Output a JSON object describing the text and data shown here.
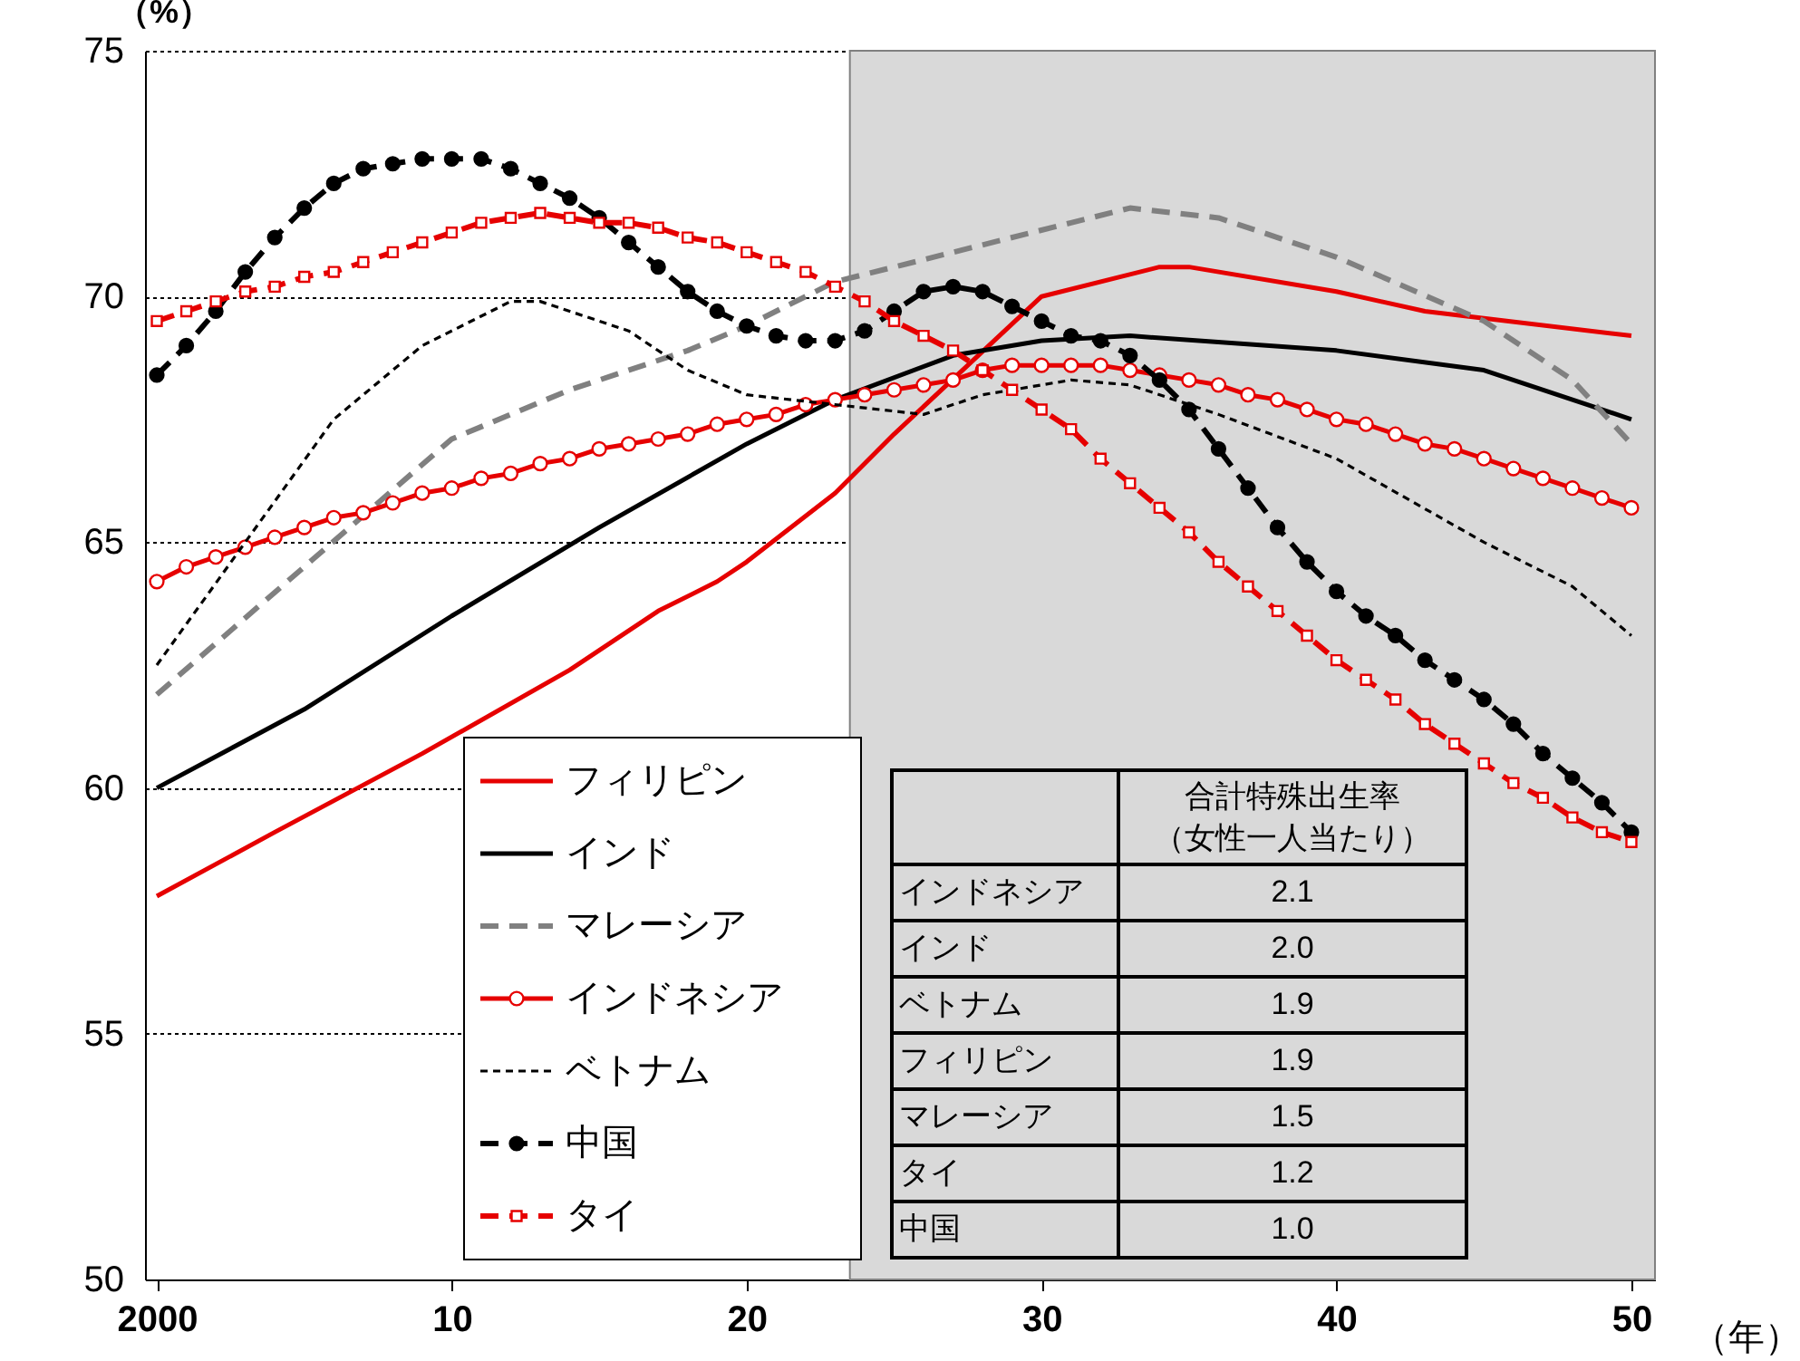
{
  "chart_data": {
    "type": "line",
    "xlabel": "（年）",
    "ylabel": "（%）",
    "xlim": [
      1999.6,
      2050.8
    ],
    "ylim": [
      50,
      75
    ],
    "xticks": [
      {
        "value": 2000,
        "label": "2000"
      },
      {
        "value": 2010,
        "label": "10"
      },
      {
        "value": 2020,
        "label": "20"
      },
      {
        "value": 2030,
        "label": "30"
      },
      {
        "value": 2040,
        "label": "40"
      },
      {
        "value": 2050,
        "label": "50"
      }
    ],
    "yticks": [
      50,
      55,
      60,
      65,
      70,
      75
    ],
    "grid": "y",
    "legend": "bottom left",
    "bands": [
      {
        "axis": "x",
        "from": 2023.5,
        "to": 2050.8,
        "color": "#d9d9d9"
      }
    ],
    "series": [
      {
        "name": "フィリピン",
        "color": "#e60000",
        "line_style": "solid",
        "marker": "none",
        "x": [
          2000,
          2004,
          2009,
          2014,
          2017,
          2019,
          2020,
          2023,
          2025,
          2030,
          2034,
          2035,
          2040,
          2043,
          2050
        ],
        "values": [
          57.8,
          59.1,
          60.7,
          62.4,
          63.6,
          64.2,
          64.6,
          66.0,
          67.2,
          70.0,
          70.6,
          70.6,
          70.1,
          69.7,
          69.2
        ]
      },
      {
        "name": "インド",
        "color": "#000000",
        "line_style": "solid",
        "marker": "none",
        "x": [
          2000,
          2005,
          2010,
          2015,
          2020,
          2023,
          2027,
          2030,
          2033,
          2040,
          2045,
          2050
        ],
        "values": [
          60.0,
          61.6,
          63.5,
          65.3,
          67.0,
          67.9,
          68.8,
          69.1,
          69.2,
          68.9,
          68.5,
          67.5
        ]
      },
      {
        "name": "マレーシア",
        "color": "#808080",
        "line_style": "dashed",
        "marker": "none",
        "x": [
          2000,
          2005,
          2010,
          2014,
          2018,
          2020,
          2023,
          2027,
          2031,
          2033,
          2036,
          2040,
          2045,
          2048,
          2050
        ],
        "values": [
          61.9,
          64.5,
          67.1,
          68.1,
          68.9,
          69.4,
          70.3,
          70.9,
          71.5,
          71.8,
          71.6,
          70.8,
          69.5,
          68.3,
          67.0
        ]
      },
      {
        "name": "インドネシア",
        "color": "#e60000",
        "line_style": "solid",
        "marker": "circle",
        "x": [
          2000,
          2001,
          2002,
          2003,
          2004,
          2005,
          2006,
          2007,
          2008,
          2009,
          2010,
          2011,
          2012,
          2013,
          2014,
          2015,
          2016,
          2017,
          2018,
          2019,
          2020,
          2021,
          2022,
          2023,
          2024,
          2025,
          2026,
          2027,
          2028,
          2029,
          2030,
          2031,
          2032,
          2033,
          2034,
          2035,
          2036,
          2037,
          2038,
          2039,
          2040,
          2041,
          2042,
          2043,
          2044,
          2045,
          2046,
          2047,
          2048,
          2049,
          2050
        ],
        "values": [
          64.2,
          64.5,
          64.7,
          64.9,
          65.1,
          65.3,
          65.5,
          65.6,
          65.8,
          66.0,
          66.1,
          66.3,
          66.4,
          66.6,
          66.7,
          66.9,
          67.0,
          67.1,
          67.2,
          67.4,
          67.5,
          67.6,
          67.8,
          67.9,
          68.0,
          68.1,
          68.2,
          68.3,
          68.5,
          68.6,
          68.6,
          68.6,
          68.6,
          68.5,
          68.4,
          68.3,
          68.2,
          68.0,
          67.9,
          67.7,
          67.5,
          67.4,
          67.2,
          67.0,
          66.9,
          66.7,
          66.5,
          66.3,
          66.1,
          65.9,
          65.7
        ]
      },
      {
        "name": "ベトナム",
        "color": "#000000",
        "line_style": "dotted",
        "marker": "none",
        "x": [
          2000,
          2003,
          2006,
          2009,
          2012,
          2013,
          2016,
          2018,
          2020,
          2023,
          2026,
          2028,
          2031,
          2033,
          2036,
          2040,
          2045,
          2048,
          2050
        ],
        "values": [
          62.5,
          65.0,
          67.5,
          69.0,
          69.9,
          69.9,
          69.3,
          68.5,
          68.0,
          67.8,
          67.6,
          68.0,
          68.3,
          68.2,
          67.6,
          66.7,
          65.0,
          64.1,
          63.1
        ]
      },
      {
        "name": "中国",
        "color": "#000000",
        "line_style": "dashed",
        "marker": "circle",
        "x": [
          2000,
          2001,
          2002,
          2003,
          2004,
          2005,
          2006,
          2007,
          2008,
          2009,
          2010,
          2011,
          2012,
          2013,
          2014,
          2015,
          2016,
          2017,
          2018,
          2019,
          2020,
          2021,
          2022,
          2023,
          2024,
          2025,
          2026,
          2027,
          2028,
          2029,
          2030,
          2031,
          2032,
          2033,
          2034,
          2035,
          2036,
          2037,
          2038,
          2039,
          2040,
          2041,
          2042,
          2043,
          2044,
          2045,
          2046,
          2047,
          2048,
          2049,
          2050
        ],
        "values": [
          68.4,
          69.0,
          69.7,
          70.5,
          71.2,
          71.8,
          72.3,
          72.6,
          72.7,
          72.8,
          72.8,
          72.8,
          72.6,
          72.3,
          72.0,
          71.6,
          71.1,
          70.6,
          70.1,
          69.7,
          69.4,
          69.2,
          69.1,
          69.1,
          69.3,
          69.7,
          70.1,
          70.2,
          70.1,
          69.8,
          69.5,
          69.2,
          69.1,
          68.8,
          68.3,
          67.7,
          66.9,
          66.1,
          65.3,
          64.6,
          64.0,
          63.5,
          63.1,
          62.6,
          62.2,
          61.8,
          61.3,
          60.7,
          60.2,
          59.7,
          59.1
        ]
      },
      {
        "name": "タイ",
        "color": "#e60000",
        "line_style": "dashed",
        "marker": "square",
        "x": [
          2000,
          2001,
          2002,
          2003,
          2004,
          2005,
          2006,
          2007,
          2008,
          2009,
          2010,
          2011,
          2012,
          2013,
          2014,
          2015,
          2016,
          2017,
          2018,
          2019,
          2020,
          2021,
          2022,
          2023,
          2024,
          2025,
          2026,
          2027,
          2028,
          2029,
          2030,
          2031,
          2032,
          2033,
          2034,
          2035,
          2036,
          2037,
          2038,
          2039,
          2040,
          2041,
          2042,
          2043,
          2044,
          2045,
          2046,
          2047,
          2048,
          2049,
          2050
        ],
        "values": [
          69.5,
          69.7,
          69.9,
          70.1,
          70.2,
          70.4,
          70.5,
          70.7,
          70.9,
          71.1,
          71.3,
          71.5,
          71.6,
          71.7,
          71.6,
          71.5,
          71.5,
          71.4,
          71.2,
          71.1,
          70.9,
          70.7,
          70.5,
          70.2,
          69.9,
          69.5,
          69.2,
          68.9,
          68.5,
          68.1,
          67.7,
          67.3,
          66.7,
          66.2,
          65.7,
          65.2,
          64.6,
          64.1,
          63.6,
          63.1,
          62.6,
          62.2,
          61.8,
          61.3,
          60.9,
          60.5,
          60.1,
          59.8,
          59.4,
          59.1,
          58.9
        ]
      }
    ],
    "annotations": [
      "合計特殊出生率",
      "（女性一人当たり）",
      "インドネシア",
      "2.1",
      "インド",
      "2.0",
      "ベトナム",
      "1.9",
      "フィリピン",
      "1.9",
      "マレーシア",
      "1.5",
      "タイ",
      "1.2",
      "中国",
      "1.0"
    ]
  }
}
